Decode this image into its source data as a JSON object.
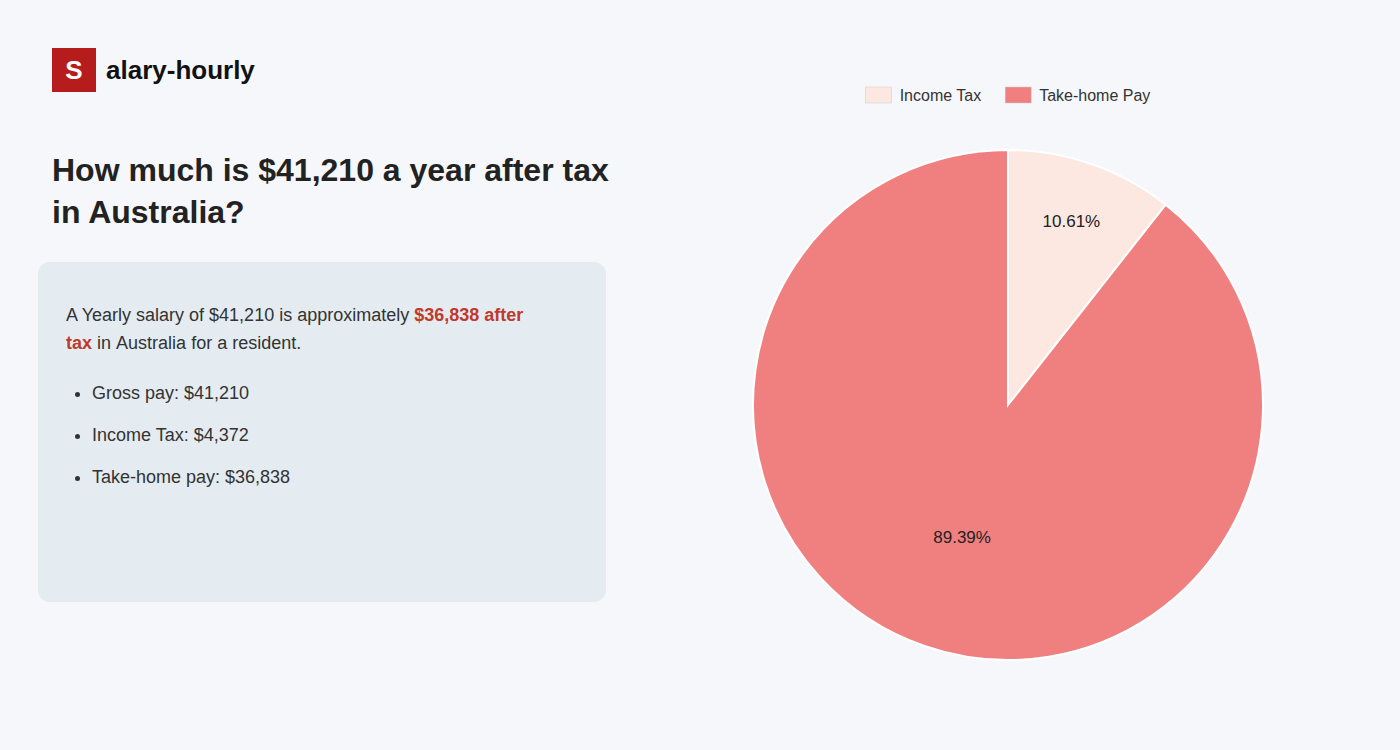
{
  "chart_data": {
    "type": "pie",
    "title": "How much is $41,210 a year after tax in Australia?",
    "categories": [
      "Income Tax",
      "Take-home Pay"
    ],
    "values": [
      10.61,
      89.39
    ],
    "value_labels": [
      "10.61%",
      "89.39%"
    ],
    "colors": [
      "#fce8e0",
      "#f08080"
    ],
    "data_labels": true,
    "legend": "top",
    "annotations": [
      "S",
      "alary-hourly",
      "A Yearly salary of $41,210 is approximately",
      "$36,838 after tax",
      "in",
      "Australia for a resident.",
      "Gross pay: $41,210",
      "Income Tax: $4,372",
      "Take-home pay: $36,838"
    ]
  }
}
